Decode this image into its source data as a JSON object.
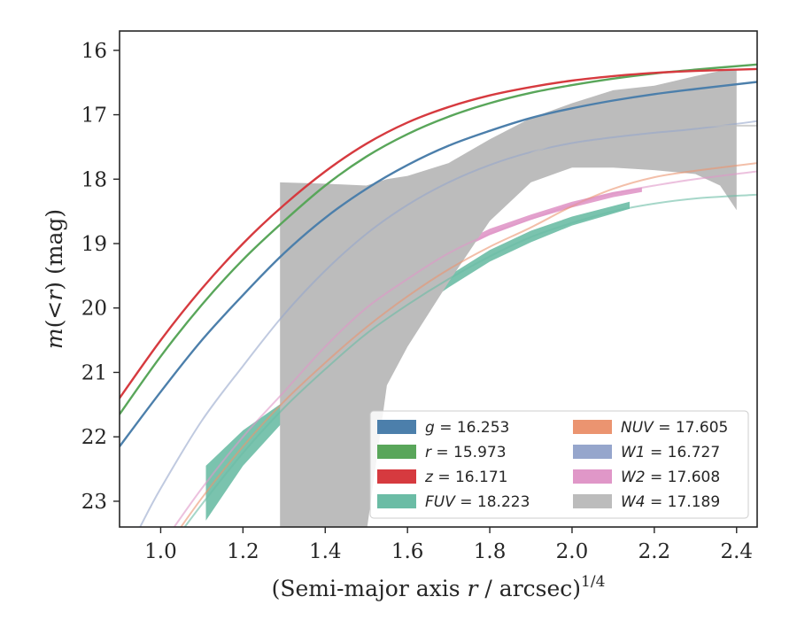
{
  "chart_data": {
    "type": "line",
    "title": "",
    "xlabel": "(Semi-major axis r / arcsec)^{1/4}",
    "xlabel_parts": {
      "main": "(Semi-major axis ",
      "var": "r",
      "unit": " / arcsec)",
      "exp": "1/4"
    },
    "ylabel": "m(<r) (mag)",
    "ylabel_parts": {
      "m": "m",
      "open": "(",
      "lt": "<",
      "r": "r",
      "close": ")",
      "unit": " (mag)"
    },
    "xlim": [
      0.9,
      2.45
    ],
    "ylim": [
      23.4,
      15.7
    ],
    "y_inverted": true,
    "xticks": [
      1.0,
      1.2,
      1.4,
      1.6,
      1.8,
      2.0,
      2.2,
      2.4
    ],
    "xtick_labels": [
      "1.0",
      "1.2",
      "1.4",
      "1.6",
      "1.8",
      "2.0",
      "2.2",
      "2.4"
    ],
    "yticks": [
      16,
      17,
      18,
      19,
      20,
      21,
      22,
      23
    ],
    "ytick_labels": [
      "16",
      "17",
      "18",
      "19",
      "20",
      "21",
      "22",
      "23"
    ],
    "grid": false,
    "legend_position": "lower-right",
    "series": [
      {
        "name": "g = 16.253",
        "label": {
          "var": "g",
          "val": "= 16.253"
        },
        "color": "#4c7fab",
        "model_x": [
          0.9,
          1.0,
          1.1,
          1.2,
          1.3,
          1.4,
          1.5,
          1.6,
          1.7,
          1.8,
          1.9,
          2.0,
          2.1,
          2.2,
          2.3,
          2.45
        ],
        "model_y": [
          22.15,
          21.3,
          20.5,
          19.8,
          19.15,
          18.6,
          18.15,
          17.78,
          17.48,
          17.25,
          17.05,
          16.9,
          16.78,
          16.68,
          16.6,
          16.49
        ],
        "band_x": [],
        "band_y1": [],
        "band_y2": []
      },
      {
        "name": "r = 15.973",
        "label": {
          "var": "r",
          "val": "= 15.973"
        },
        "color": "#59a65a",
        "model_x": [
          0.9,
          1.0,
          1.1,
          1.2,
          1.3,
          1.4,
          1.5,
          1.6,
          1.7,
          1.8,
          1.9,
          2.0,
          2.1,
          2.2,
          2.3,
          2.45
        ],
        "model_y": [
          21.65,
          20.75,
          19.95,
          19.25,
          18.65,
          18.1,
          17.65,
          17.3,
          17.03,
          16.82,
          16.66,
          16.54,
          16.44,
          16.36,
          16.3,
          16.22
        ],
        "band_x": [],
        "band_y1": [],
        "band_y2": []
      },
      {
        "name": "z = 16.171",
        "label": {
          "var": "z",
          "val": "= 16.171"
        },
        "color": "#d63a3f",
        "model_x": [
          0.9,
          1.0,
          1.1,
          1.2,
          1.3,
          1.4,
          1.5,
          1.6,
          1.7,
          1.8,
          1.9,
          2.0,
          2.1,
          2.2,
          2.3,
          2.45
        ],
        "model_y": [
          21.4,
          20.5,
          19.7,
          19.0,
          18.4,
          17.88,
          17.45,
          17.12,
          16.88,
          16.7,
          16.57,
          16.47,
          16.4,
          16.35,
          16.32,
          16.29
        ],
        "band_x": [],
        "band_y1": [],
        "band_y2": []
      },
      {
        "name": "FUV = 18.223",
        "label": {
          "var": "FUV",
          "val": "= 18.223"
        },
        "color": "#6bbca5",
        "model_x": [
          1.0,
          1.1,
          1.2,
          1.3,
          1.4,
          1.5,
          1.6,
          1.7,
          1.8,
          1.9,
          2.0,
          2.1,
          2.2,
          2.3,
          2.45
        ],
        "model_y": [
          23.9,
          23.05,
          22.25,
          21.55,
          20.95,
          20.4,
          19.95,
          19.55,
          19.2,
          18.9,
          18.68,
          18.5,
          18.38,
          18.3,
          18.24
        ],
        "band_x": [
          1.11,
          1.2,
          1.3,
          1.4,
          1.5,
          1.6,
          1.7,
          1.8,
          1.9,
          2.0,
          2.14
        ],
        "band_y1": [
          22.45,
          21.9,
          21.45,
          20.95,
          20.45,
          19.95,
          19.5,
          19.1,
          18.8,
          18.58,
          18.35
        ],
        "band_y2": [
          23.3,
          22.45,
          21.75,
          21.1,
          20.58,
          20.12,
          19.68,
          19.28,
          18.98,
          18.72,
          18.46
        ]
      },
      {
        "name": "NUV = 17.605",
        "label": {
          "var": "NUV",
          "val": "= 17.605"
        },
        "color": "#eb9470",
        "model_x": [
          1.0,
          1.1,
          1.2,
          1.3,
          1.4,
          1.5,
          1.6,
          1.7,
          1.8,
          1.9,
          2.0,
          2.1,
          2.2,
          2.3,
          2.45
        ],
        "model_y": [
          23.85,
          22.95,
          22.15,
          21.45,
          20.85,
          20.3,
          19.82,
          19.4,
          19.05,
          18.75,
          18.42,
          18.15,
          17.97,
          17.87,
          17.75
        ],
        "band_x": [],
        "band_y1": [],
        "band_y2": []
      },
      {
        "name": "W1 = 16.727",
        "label": {
          "var": "W1",
          "val": "= 16.727"
        },
        "color": "#96a6cc",
        "model_x": [
          0.95,
          1.0,
          1.1,
          1.2,
          1.3,
          1.4,
          1.5,
          1.6,
          1.7,
          1.8,
          1.9,
          2.0,
          2.1,
          2.2,
          2.3,
          2.45
        ],
        "model_y": [
          23.4,
          22.8,
          21.75,
          20.9,
          20.1,
          19.42,
          18.85,
          18.4,
          18.05,
          17.78,
          17.58,
          17.44,
          17.35,
          17.28,
          17.22,
          17.1
        ],
        "band_x": [],
        "band_y1": [],
        "band_y2": []
      },
      {
        "name": "W2 = 17.608",
        "label": {
          "var": "W2",
          "val": "= 17.608"
        },
        "color": "#e097c8",
        "model_x": [
          1.0,
          1.1,
          1.2,
          1.3,
          1.4,
          1.5,
          1.6,
          1.7,
          1.8,
          1.9,
          2.0,
          2.1,
          2.2,
          2.3,
          2.45
        ],
        "model_y": [
          23.7,
          22.8,
          22.0,
          21.3,
          20.6,
          20.0,
          19.55,
          19.15,
          18.85,
          18.62,
          18.4,
          18.22,
          18.1,
          18.0,
          17.88
        ],
        "band_x": [
          1.3,
          1.4,
          1.5,
          1.6,
          1.7,
          1.8,
          1.9,
          2.0,
          2.1,
          2.17
        ],
        "band_y1": [
          21.28,
          20.55,
          19.95,
          19.48,
          19.08,
          18.77,
          18.55,
          18.35,
          18.2,
          18.13
        ],
        "band_y2": [
          21.4,
          20.66,
          20.05,
          19.58,
          19.18,
          18.87,
          18.63,
          18.44,
          18.28,
          18.2
        ]
      },
      {
        "name": "W4 = 17.189",
        "label": {
          "var": "W4",
          "val": "= 17.189"
        },
        "color": "#bcbcbc",
        "model_x": [
          1.9,
          2.0,
          2.1,
          2.2,
          2.3,
          2.45
        ],
        "model_y": [
          17.6,
          17.35,
          17.22,
          17.18,
          17.17,
          17.17
        ],
        "band_x": [
          1.29,
          1.4,
          1.5,
          1.55,
          1.6,
          1.7,
          1.8,
          1.9,
          2.0,
          2.1,
          2.2,
          2.3,
          2.36,
          2.4
        ],
        "band_y1": [
          18.05,
          18.07,
          18.1,
          18.0,
          17.95,
          17.75,
          17.38,
          17.05,
          16.82,
          16.62,
          16.55,
          16.4,
          16.32,
          16.3
        ],
        "band_y2": [
          23.5,
          23.5,
          23.5,
          21.2,
          20.6,
          19.6,
          18.65,
          18.05,
          17.82,
          17.82,
          17.86,
          17.92,
          18.1,
          18.48
        ]
      }
    ]
  }
}
